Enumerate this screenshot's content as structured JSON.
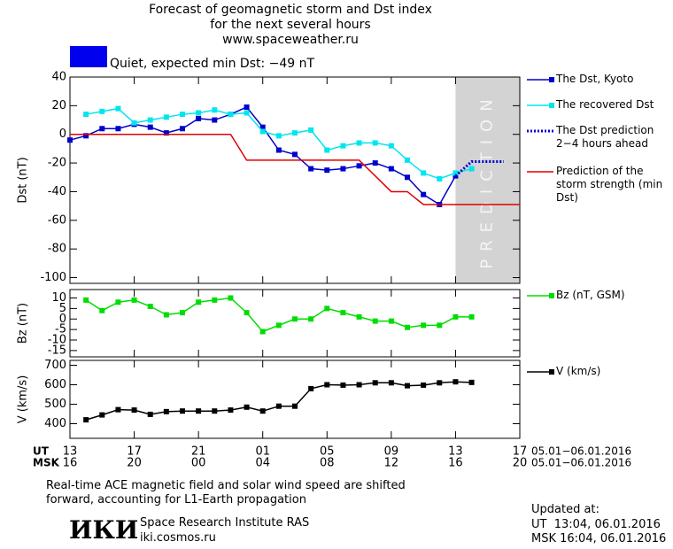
{
  "header": {
    "title_lines": [
      "Forecast of geomagnetic storm and Dst index",
      "for the next several hours",
      "www.spaceweather.ru"
    ],
    "status": {
      "color": "#0000ee",
      "text": "Quiet, expected min Dst: −49 nT"
    }
  },
  "chart_data": [
    {
      "type": "line",
      "ylabel": "Dst (nT)",
      "xlim": [
        0,
        28
      ],
      "ylim": [
        -104,
        40
      ],
      "yticks": [
        {
          "value": 40,
          "label": "40"
        },
        {
          "value": 20,
          "label": "20"
        },
        0,
        -20,
        -40,
        -60,
        -80,
        -100
      ],
      "shade": [
        24,
        28
      ],
      "shade_label": "PREDICTION",
      "series": [
        {
          "name": "The Dst, Kyoto",
          "color": "#0000cc",
          "marker": true,
          "line_style": "solid",
          "x": [
            0,
            1,
            2,
            3,
            4,
            5,
            6,
            7,
            8,
            9,
            10,
            11,
            12,
            13,
            14,
            15,
            16,
            17,
            18,
            19,
            20,
            21,
            22,
            23,
            24
          ],
          "values": [
            -4,
            -1,
            4,
            4,
            7,
            5,
            1,
            4,
            11,
            10,
            14,
            19,
            5,
            -11,
            -14,
            -24,
            -25,
            -24,
            -22,
            -20,
            -24,
            -30,
            -42,
            -49,
            -29
          ]
        },
        {
          "name": "The recovered Dst",
          "color": "#00e5ee",
          "marker": true,
          "line_style": "solid",
          "x": [
            1,
            2,
            3,
            4,
            5,
            6,
            7,
            8,
            9,
            10,
            11,
            12,
            13,
            14,
            15,
            16,
            17,
            18,
            19,
            20,
            21,
            22,
            23,
            24,
            25
          ],
          "values": [
            14,
            16,
            18,
            8,
            10,
            12,
            14,
            15,
            17,
            14,
            15,
            2,
            -1,
            1,
            3,
            -11,
            -8,
            -6,
            -6,
            -8,
            -18,
            -27,
            -31,
            -27,
            -24
          ]
        },
        {
          "name": "The Dst prediction 2−4 hours ahead",
          "color": "#0000cc",
          "marker": false,
          "line_style": "dotted",
          "x": [
            24,
            25,
            27
          ],
          "values": [
            -29,
            -19,
            -19
          ]
        },
        {
          "name": "Prediction of the storm strength (min Dst)",
          "color": "#e00000",
          "marker": false,
          "line_style": "solid",
          "x": [
            0,
            10,
            11,
            17,
            18,
            20,
            21,
            22,
            28
          ],
          "values": [
            0,
            0,
            -18,
            -18,
            -18,
            -40,
            -40,
            -49,
            -49
          ]
        }
      ]
    },
    {
      "type": "line",
      "ylabel": "Bz (nT)",
      "xlim": [
        0,
        28
      ],
      "ylim": [
        -18,
        14
      ],
      "yticks": [
        10,
        5,
        0,
        -5,
        -10,
        -15
      ],
      "series": [
        {
          "name": "Bz (nT, GSM)",
          "color": "#00dd00",
          "marker": true,
          "line_style": "solid",
          "x": [
            1,
            2,
            3,
            4,
            5,
            6,
            7,
            8,
            9,
            10,
            11,
            12,
            13,
            14,
            15,
            16,
            17,
            18,
            19,
            20,
            21,
            22,
            23,
            24,
            25
          ],
          "values": [
            9,
            4,
            8,
            9,
            6,
            2,
            3,
            8,
            9,
            10,
            3,
            -6,
            -3,
            0,
            0,
            5,
            3,
            1,
            -1,
            -1,
            -4,
            -3,
            -3,
            1,
            1
          ]
        }
      ]
    },
    {
      "type": "line",
      "ylabel": "V (km/s)",
      "xlim": [
        0,
        28
      ],
      "ylim": [
        325,
        725
      ],
      "yticks": [
        400,
        500,
        600,
        700
      ],
      "xticks": [
        {
          "value": 0,
          "label": "13"
        },
        {
          "value": 4,
          "label": "17"
        },
        {
          "value": 8,
          "label": "21"
        },
        {
          "value": 12,
          "label": "01"
        },
        {
          "value": 16,
          "label": "05"
        },
        {
          "value": 20,
          "label": "09"
        },
        {
          "value": 24,
          "label": "13"
        },
        {
          "value": 28,
          "label": "17"
        }
      ],
      "x_row_label": "UT",
      "x2_row_label": "MSK",
      "x2_tick_labels": [
        "16",
        "20",
        "00",
        "04",
        "08",
        "12",
        "16",
        "20"
      ],
      "date_range": "05.01−06.01.2016",
      "series": [
        {
          "name": "V (km/s)",
          "color": "#000000",
          "marker": true,
          "line_style": "solid",
          "x": [
            1,
            2,
            3,
            4,
            5,
            6,
            7,
            8,
            9,
            10,
            11,
            12,
            13,
            14,
            15,
            16,
            17,
            18,
            19,
            20,
            21,
            22,
            23,
            24,
            25
          ],
          "values": [
            420,
            445,
            472,
            470,
            448,
            462,
            465,
            465,
            465,
            470,
            485,
            465,
            490,
            490,
            580,
            600,
            598,
            600,
            610,
            610,
            595,
            598,
            610,
            615,
            612
          ]
        }
      ]
    }
  ],
  "footer": {
    "note_lines": [
      "Real-time ACE magnetic field and solar wind speed are shifted",
      "forward, accounting for L1-Earth propagation"
    ],
    "logo": "ИКИ",
    "institute": "Space Research Institute RAS",
    "site": "iki.cosmos.ru",
    "updated_label": "Updated at:",
    "updated_ut": "UT  13:04, 06.01.2016",
    "updated_msk": "MSK 16:04, 06.01.2016"
  }
}
